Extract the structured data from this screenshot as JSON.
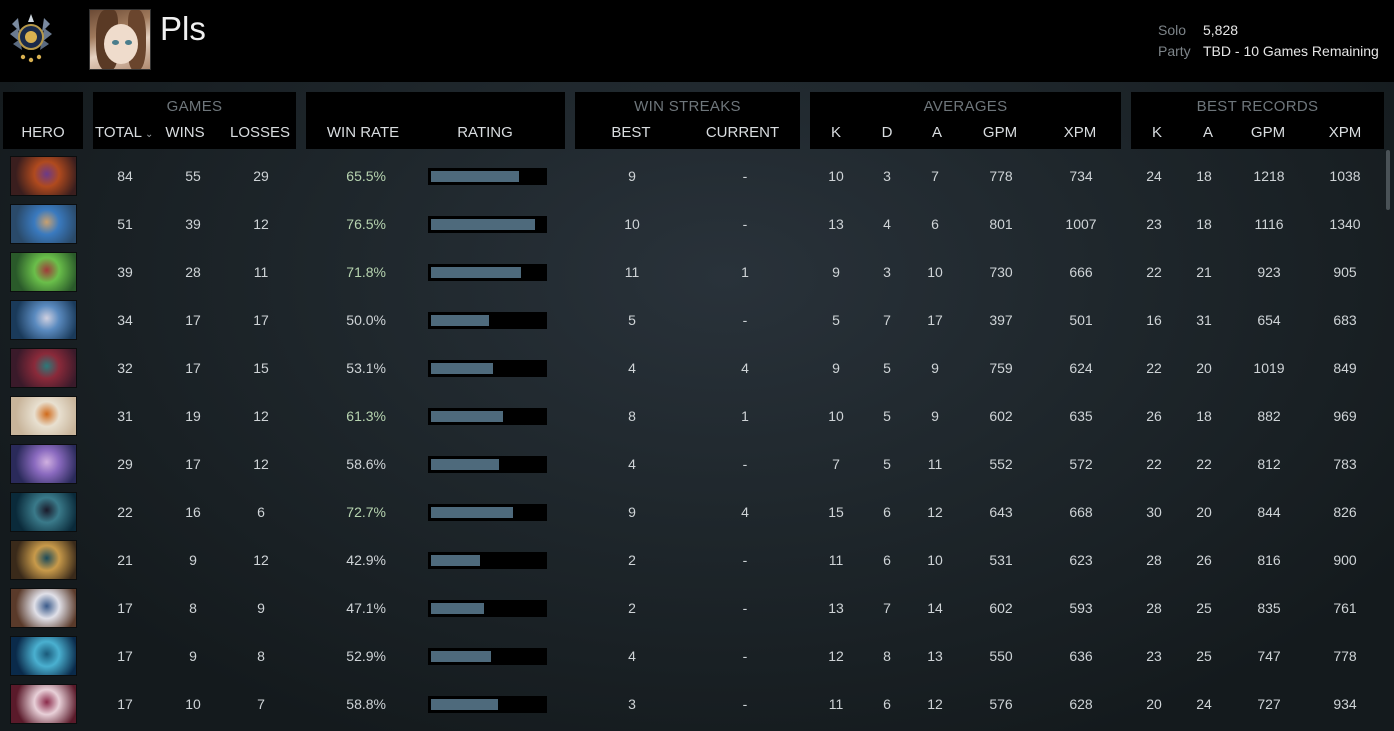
{
  "player": {
    "name": "Pls",
    "solo_label": "Solo",
    "solo_value": "5,828",
    "party_label": "Party",
    "party_value": "TBD - 10 Games Remaining"
  },
  "headers": {
    "hero": "HERO",
    "games": {
      "title": "GAMES",
      "total": "TOTAL",
      "wins": "WINS",
      "losses": "LOSSES"
    },
    "win_rate": "WIN RATE",
    "rating": "RATING",
    "win_streaks": {
      "title": "WIN STREAKS",
      "best": "BEST",
      "current": "CURRENT"
    },
    "averages": {
      "title": "AVERAGES",
      "k": "K",
      "d": "D",
      "a": "A",
      "gpm": "GPM",
      "xpm": "XPM"
    },
    "best_records": {
      "title": "BEST RECORDS",
      "k": "K",
      "a": "A",
      "gpm": "GPM",
      "xpm": "XPM"
    }
  },
  "rows": [
    {
      "hero_icon": "antimage-portrait",
      "colors": [
        "#3a1e1e",
        "#b04a1e",
        "#6a3a8a"
      ],
      "total": "84",
      "wins": "55",
      "losses": "29",
      "win_rate": "65.5%",
      "rating": 0.78,
      "best": "9",
      "current": "-",
      "avg_k": "10",
      "avg_d": "3",
      "avg_a": "7",
      "avg_gpm": "778",
      "avg_xpm": "734",
      "best_k": "24",
      "best_a": "18",
      "best_gpm": "1218",
      "best_xpm": "1038"
    },
    {
      "hero_icon": "meepo-portrait",
      "colors": [
        "#2a4a6a",
        "#3a7abf",
        "#c8a070"
      ],
      "total": "51",
      "wins": "39",
      "losses": "12",
      "win_rate": "76.5%",
      "rating": 0.92,
      "best": "10",
      "current": "-",
      "avg_k": "13",
      "avg_d": "4",
      "avg_a": "6",
      "avg_gpm": "801",
      "avg_xpm": "1007",
      "best_k": "23",
      "best_a": "18",
      "best_gpm": "1116",
      "best_xpm": "1340"
    },
    {
      "hero_icon": "medusa-portrait",
      "colors": [
        "#2a5a2a",
        "#6abf4a",
        "#a03a3a"
      ],
      "total": "39",
      "wins": "28",
      "losses": "11",
      "win_rate": "71.8%",
      "rating": 0.8,
      "best": "11",
      "current": "1",
      "avg_k": "9",
      "avg_d": "3",
      "avg_a": "10",
      "avg_gpm": "730",
      "avg_xpm": "666",
      "best_k": "22",
      "best_a": "21",
      "best_gpm": "923",
      "best_xpm": "905"
    },
    {
      "hero_icon": "slark-portrait",
      "colors": [
        "#1a3a5a",
        "#5a8abf",
        "#d0d0e0"
      ],
      "total": "34",
      "wins": "17",
      "losses": "17",
      "win_rate": "50.0%",
      "rating": 0.51,
      "best": "5",
      "current": "-",
      "avg_k": "5",
      "avg_d": "7",
      "avg_a": "17",
      "avg_gpm": "397",
      "avg_xpm": "501",
      "best_k": "16",
      "best_a": "31",
      "best_gpm": "654",
      "best_xpm": "683"
    },
    {
      "hero_icon": "templar-assassin-portrait",
      "colors": [
        "#3a1a2a",
        "#8a2a3a",
        "#2a7a7a"
      ],
      "total": "32",
      "wins": "17",
      "losses": "15",
      "win_rate": "53.1%",
      "rating": 0.55,
      "best": "4",
      "current": "4",
      "avg_k": "9",
      "avg_d": "5",
      "avg_a": "9",
      "avg_gpm": "759",
      "avg_xpm": "624",
      "best_k": "22",
      "best_a": "20",
      "best_gpm": "1019",
      "best_xpm": "849"
    },
    {
      "hero_icon": "lina-portrait",
      "colors": [
        "#c8b49a",
        "#e8e0d0",
        "#d06a1a"
      ],
      "total": "31",
      "wins": "19",
      "losses": "12",
      "win_rate": "61.3%",
      "rating": 0.64,
      "best": "8",
      "current": "1",
      "avg_k": "10",
      "avg_d": "5",
      "avg_a": "9",
      "avg_gpm": "602",
      "avg_xpm": "635",
      "best_k": "26",
      "best_a": "18",
      "best_gpm": "882",
      "best_xpm": "969"
    },
    {
      "hero_icon": "anti-mage-alt-portrait",
      "colors": [
        "#2a2a5a",
        "#8a6abf",
        "#d0b0e0"
      ],
      "total": "29",
      "wins": "17",
      "losses": "12",
      "win_rate": "58.6%",
      "rating": 0.6,
      "best": "4",
      "current": "-",
      "avg_k": "7",
      "avg_d": "5",
      "avg_a": "11",
      "avg_gpm": "552",
      "avg_xpm": "572",
      "best_k": "22",
      "best_a": "22",
      "best_gpm": "812",
      "best_xpm": "783"
    },
    {
      "hero_icon": "phantom-assassin-portrait",
      "colors": [
        "#0a2a3a",
        "#3a7a8a",
        "#1a1a2a"
      ],
      "total": "22",
      "wins": "16",
      "losses": "6",
      "win_rate": "72.7%",
      "rating": 0.73,
      "best": "9",
      "current": "4",
      "avg_k": "15",
      "avg_d": "6",
      "avg_a": "12",
      "avg_gpm": "643",
      "avg_xpm": "668",
      "best_k": "30",
      "best_a": "20",
      "best_gpm": "844",
      "best_xpm": "826"
    },
    {
      "hero_icon": "tidehunter-portrait",
      "colors": [
        "#3a2a1a",
        "#c89a4a",
        "#1a4a5a"
      ],
      "total": "21",
      "wins": "9",
      "losses": "12",
      "win_rate": "42.9%",
      "rating": 0.43,
      "best": "2",
      "current": "-",
      "avg_k": "11",
      "avg_d": "6",
      "avg_a": "10",
      "avg_gpm": "531",
      "avg_xpm": "623",
      "best_k": "28",
      "best_a": "26",
      "best_gpm": "816",
      "best_xpm": "900"
    },
    {
      "hero_icon": "tusk-portrait",
      "colors": [
        "#5a3a2a",
        "#e0e0e8",
        "#3a5a8a"
      ],
      "total": "17",
      "wins": "8",
      "losses": "9",
      "win_rate": "47.1%",
      "rating": 0.47,
      "best": "2",
      "current": "-",
      "avg_k": "13",
      "avg_d": "7",
      "avg_a": "14",
      "avg_gpm": "602",
      "avg_xpm": "593",
      "best_k": "28",
      "best_a": "25",
      "best_gpm": "835",
      "best_xpm": "761"
    },
    {
      "hero_icon": "morphling-portrait",
      "colors": [
        "#0a2a4a",
        "#4ab0d0",
        "#1a5a7a"
      ],
      "total": "17",
      "wins": "9",
      "losses": "8",
      "win_rate": "52.9%",
      "rating": 0.53,
      "best": "4",
      "current": "-",
      "avg_k": "12",
      "avg_d": "8",
      "avg_a": "13",
      "avg_gpm": "550",
      "avg_xpm": "636",
      "best_k": "23",
      "best_a": "25",
      "best_gpm": "747",
      "best_xpm": "778"
    },
    {
      "hero_icon": "invoker-portrait",
      "colors": [
        "#5a1a2a",
        "#e8d0d8",
        "#8a2a4a"
      ],
      "total": "17",
      "wins": "10",
      "losses": "7",
      "win_rate": "58.8%",
      "rating": 0.59,
      "best": "3",
      "current": "-",
      "avg_k": "11",
      "avg_d": "6",
      "avg_a": "12",
      "avg_gpm": "576",
      "avg_xpm": "628",
      "best_k": "20",
      "best_a": "24",
      "best_gpm": "727",
      "best_xpm": "934"
    }
  ]
}
